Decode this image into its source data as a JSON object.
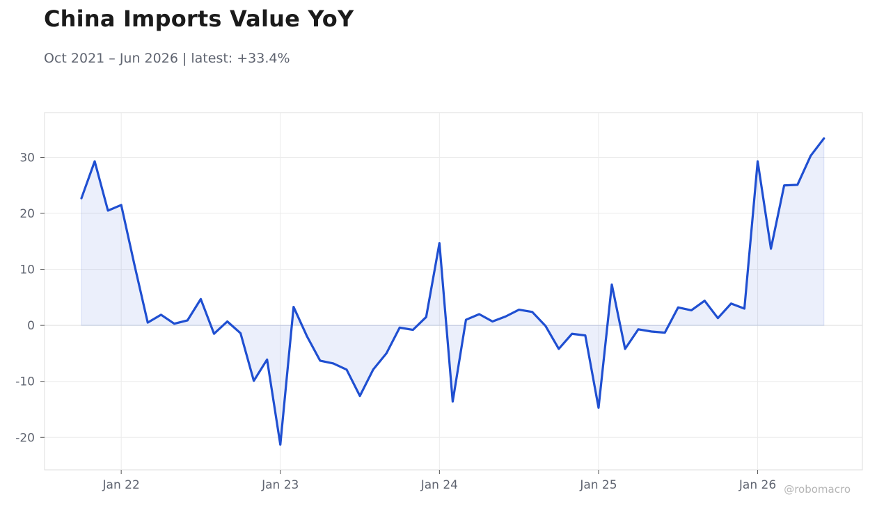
{
  "header": {
    "title": "China Imports Value YoY",
    "subtitle": "Oct 2021 – Jun 2026 | latest: +33.4%"
  },
  "watermark": "@robomacro",
  "colors": {
    "line": "#1f4fd1",
    "fill": "#1f4fd1",
    "grid": "#ececec",
    "frame": "#dddddd",
    "zero_line": "#e2e2e2"
  },
  "chart_data": {
    "type": "area",
    "x_start": "2021-10",
    "x_end": "2026-06",
    "frequency": "monthly",
    "values": [
      22.7,
      29.3,
      20.5,
      21.5,
      10.8,
      0.5,
      1.9,
      0.3,
      0.9,
      4.7,
      -1.5,
      0.7,
      -1.4,
      -9.9,
      -6.1,
      -21.3,
      3.3,
      -1.9,
      -6.3,
      -6.8,
      -7.9,
      -12.6,
      -7.9,
      -5.0,
      -0.4,
      -0.8,
      1.5,
      14.7,
      -13.6,
      1.0,
      2.0,
      0.7,
      1.6,
      2.8,
      2.4,
      -0.1,
      -4.2,
      -1.5,
      -1.8,
      -14.7,
      7.3,
      -4.2,
      -0.7,
      -1.1,
      -1.3,
      3.2,
      2.7,
      4.4,
      1.3,
      3.9,
      3.0,
      29.3,
      13.7,
      25.0,
      25.1,
      30.3,
      33.4
    ],
    "x_tick_labels": [
      "Jan 22",
      "Jan 23",
      "Jan 24",
      "Jan 25",
      "Jan 26"
    ],
    "x_tick_dates": [
      "2022-01",
      "2023-01",
      "2024-01",
      "2025-01",
      "2026-01"
    ],
    "y_ticks": [
      30,
      20,
      10,
      0,
      -10,
      -20
    ],
    "y_tick_labels": [
      "30",
      "20",
      "10",
      "0",
      "-10",
      "-20"
    ],
    "ylim": [
      -25.8,
      38
    ],
    "grid": true,
    "baseline": 0
  }
}
